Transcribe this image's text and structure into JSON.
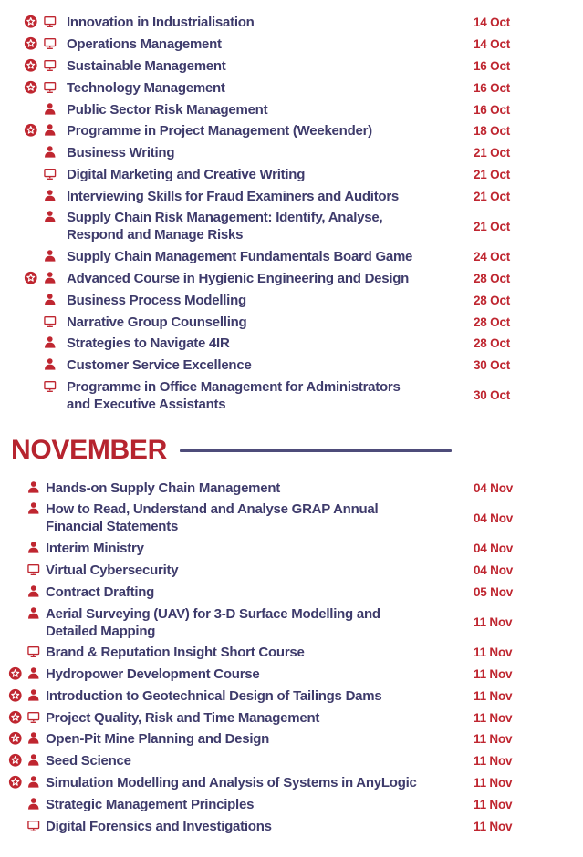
{
  "theme": {
    "accent_red": "#bf2630",
    "header_red": "#b6242f",
    "text_navy": "#3e3b6b",
    "rule_navy": "#4e4c7a",
    "background": "#ffffff"
  },
  "sections": [
    {
      "id": "october",
      "header": null,
      "rows": [
        {
          "icons": [
            "badge-star-icon",
            "monitor-icon"
          ],
          "title": "Innovation in Industrialisation",
          "date": "14 Oct"
        },
        {
          "icons": [
            "badge-star-icon",
            "monitor-icon"
          ],
          "title": "Operations Management",
          "date": "14 Oct"
        },
        {
          "icons": [
            "badge-star-icon",
            "monitor-icon"
          ],
          "title": "Sustainable Management",
          "date": "16 Oct"
        },
        {
          "icons": [
            "badge-star-icon",
            "monitor-icon"
          ],
          "title": "Technology Management",
          "date": "16 Oct"
        },
        {
          "icons": [
            "person-icon"
          ],
          "title": "Public Sector Risk Management",
          "date": "16 Oct"
        },
        {
          "icons": [
            "badge-star-icon",
            "person-icon"
          ],
          "title": "Programme in Project Management (Weekender)",
          "date": "18 Oct"
        },
        {
          "icons": [
            "person-icon"
          ],
          "title": "Business Writing",
          "date": "21 Oct"
        },
        {
          "icons": [
            "monitor-icon"
          ],
          "title": "Digital Marketing and Creative Writing",
          "date": "21 Oct"
        },
        {
          "icons": [
            "person-icon"
          ],
          "title": "Interviewing Skills for Fraud Examiners and Auditors",
          "date": "21 Oct"
        },
        {
          "icons": [
            "person-icon"
          ],
          "title": "Supply Chain Risk Management: Identify, Analyse,\nRespond and Manage Risks",
          "date": "21 Oct"
        },
        {
          "icons": [
            "person-icon"
          ],
          "title": "Supply Chain Management Fundamentals Board Game",
          "date": "24 Oct"
        },
        {
          "icons": [
            "badge-star-icon",
            "person-icon"
          ],
          "title": "Advanced Course in Hygienic Engineering and Design",
          "date": "28 Oct"
        },
        {
          "icons": [
            "person-icon"
          ],
          "title": "Business Process Modelling",
          "date": "28 Oct"
        },
        {
          "icons": [
            "monitor-icon"
          ],
          "title": "Narrative Group Counselling",
          "date": "28 Oct"
        },
        {
          "icons": [
            "person-icon"
          ],
          "title": "Strategies to Navigate 4IR",
          "date": "28 Oct"
        },
        {
          "icons": [
            "person-icon"
          ],
          "title": "Customer Service Excellence",
          "date": "30 Oct"
        },
        {
          "icons": [
            "monitor-icon"
          ],
          "title": "Programme in Office Management for Administrators\nand Executive Assistants",
          "date": "30 Oct"
        }
      ]
    },
    {
      "id": "november",
      "header": "NOVEMBER",
      "rows": [
        {
          "icons": [
            "person-icon"
          ],
          "title": "Hands-on Supply Chain Management",
          "date": "04 Nov"
        },
        {
          "icons": [
            "person-icon"
          ],
          "title": "How to Read, Understand and Analyse GRAP Annual\nFinancial Statements",
          "date": "04 Nov"
        },
        {
          "icons": [
            "person-icon"
          ],
          "title": "Interim Ministry",
          "date": "04 Nov"
        },
        {
          "icons": [
            "monitor-icon"
          ],
          "title": "Virtual Cybersecurity",
          "date": "04 Nov"
        },
        {
          "icons": [
            "person-icon"
          ],
          "title": "Contract Drafting",
          "date": "05 Nov"
        },
        {
          "icons": [
            "person-icon"
          ],
          "title": "Aerial Surveying (UAV) for 3-D Surface Modelling and\nDetailed Mapping",
          "date": "11 Nov"
        },
        {
          "icons": [
            "monitor-icon"
          ],
          "title": "Brand & Reputation Insight Short Course",
          "date": "11 Nov"
        },
        {
          "icons": [
            "badge-star-icon",
            "person-icon"
          ],
          "title": "Hydropower Development Course",
          "date": "11 Nov"
        },
        {
          "icons": [
            "badge-star-icon",
            "person-icon"
          ],
          "title": "Introduction to Geotechnical Design of Tailings Dams",
          "date": "11 Nov"
        },
        {
          "icons": [
            "badge-star-icon",
            "monitor-icon"
          ],
          "title": "Project Quality, Risk and Time Management",
          "date": "11 Nov"
        },
        {
          "icons": [
            "badge-star-icon",
            "person-icon"
          ],
          "title": "Open-Pit Mine Planning and Design",
          "date": "11 Nov"
        },
        {
          "icons": [
            "badge-star-icon",
            "person-icon"
          ],
          "title": "Seed Science",
          "date": "11 Nov"
        },
        {
          "icons": [
            "badge-star-icon",
            "person-icon"
          ],
          "title": "Simulation Modelling and Analysis of Systems in AnyLogic",
          "date": "11 Nov"
        },
        {
          "icons": [
            "person-icon"
          ],
          "title": "Strategic Management Principles",
          "date": "11 Nov"
        },
        {
          "icons": [
            "monitor-icon"
          ],
          "title": "Digital Forensics and Investigations",
          "date": "11 Nov"
        }
      ]
    }
  ]
}
